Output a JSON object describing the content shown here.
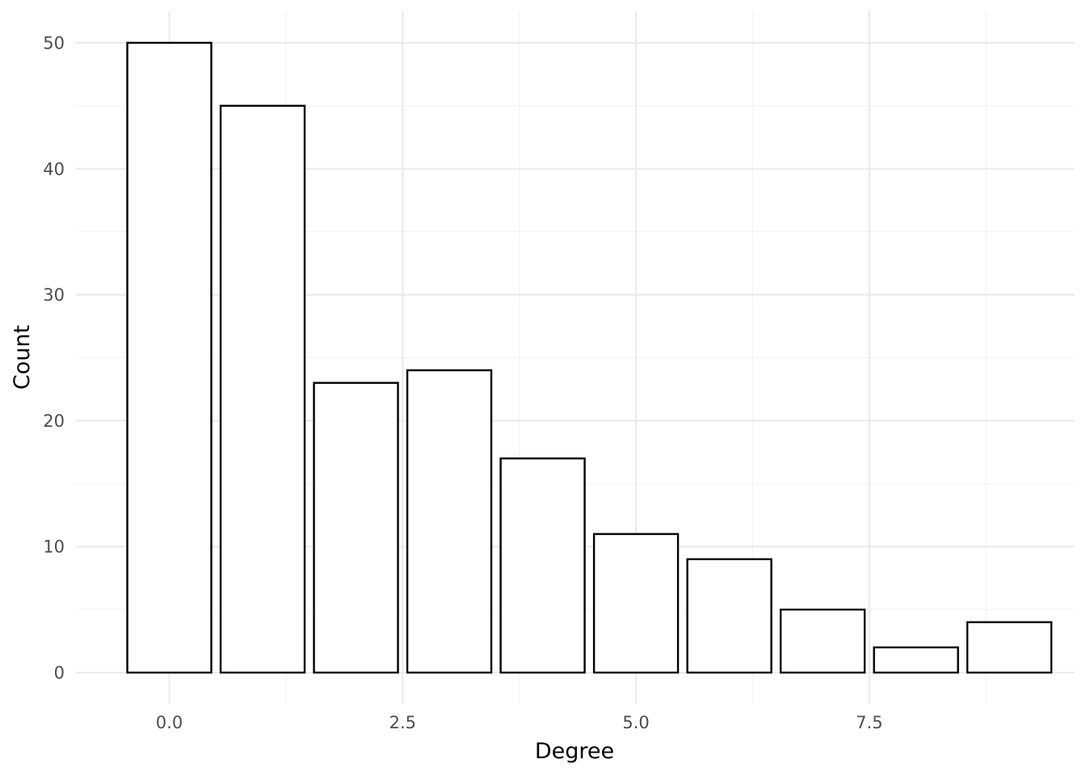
{
  "chart_data": {
    "type": "bar",
    "title": "",
    "xlabel": "Degree",
    "ylabel": "Count",
    "x": [
      0,
      1,
      2,
      3,
      4,
      5,
      6,
      7,
      8,
      9
    ],
    "values": [
      50,
      45,
      23,
      24,
      17,
      11,
      9,
      5,
      2,
      4
    ],
    "bar_width": 0.9,
    "xlim": [
      -1,
      9.7
    ],
    "ylim": [
      -2.5,
      52.5
    ],
    "xticks": [
      0,
      2.5,
      5,
      7.5
    ],
    "xtick_labels": [
      "0.0",
      "2.5",
      "5.0",
      "7.5"
    ],
    "yticks": [
      0,
      10,
      20,
      30,
      40,
      50
    ],
    "ytick_labels": [
      "0",
      "10",
      "20",
      "30",
      "40",
      "50"
    ],
    "grid": true,
    "legend": "none",
    "colors": {
      "bar_fill": "#ffffff",
      "bar_stroke": "#000000",
      "grid": "#ebebeb"
    }
  }
}
